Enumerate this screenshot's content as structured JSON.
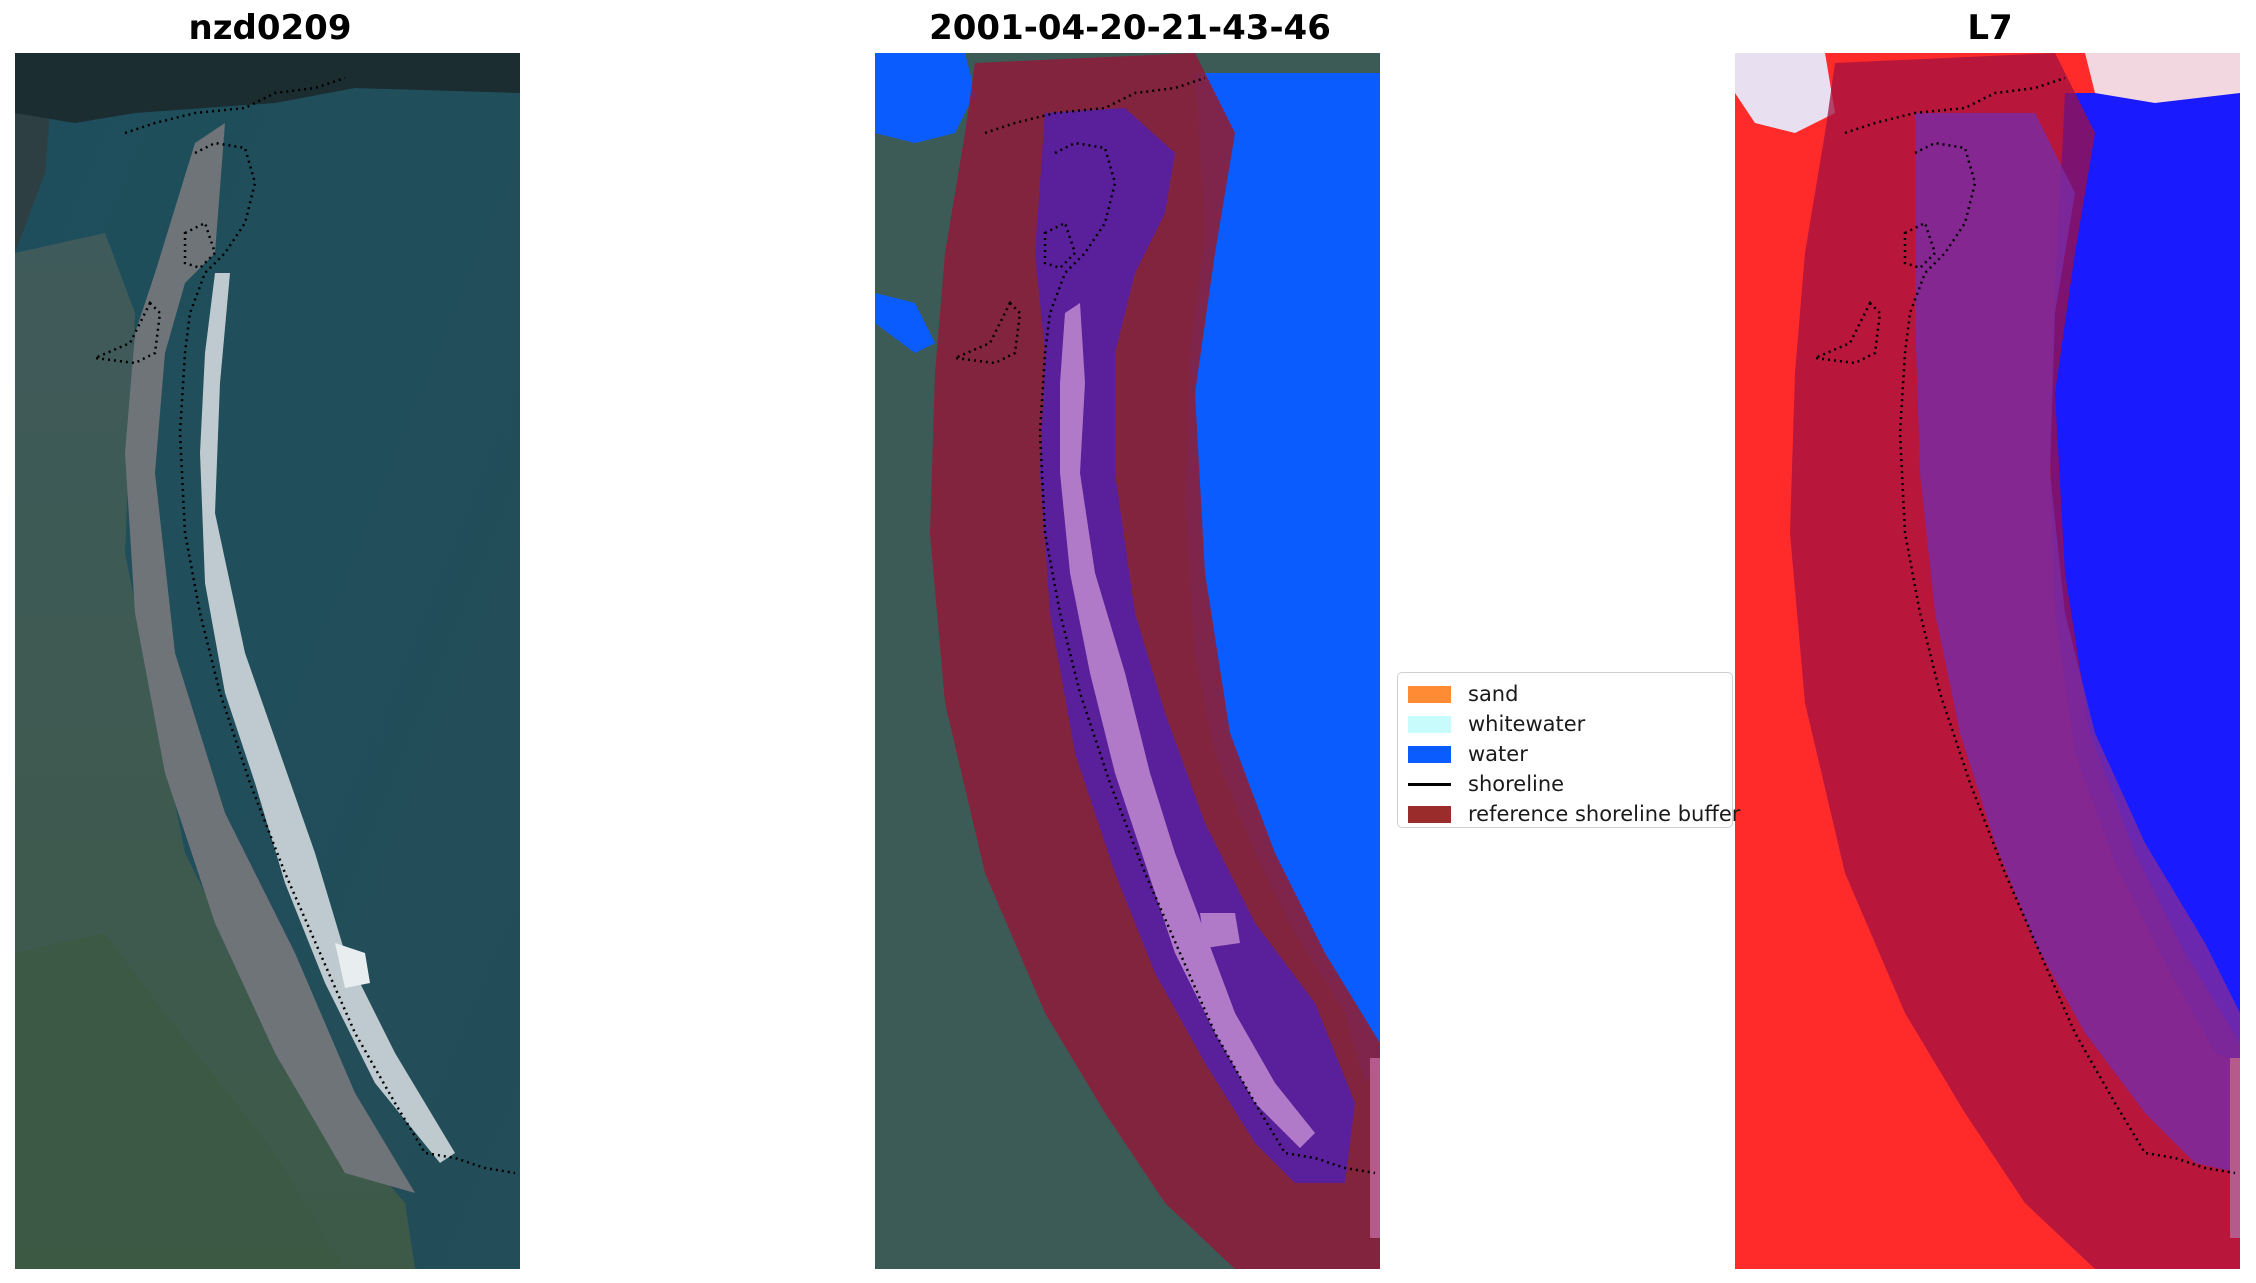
{
  "titles": {
    "left": "nzd0209",
    "middle": "2001-04-20-21-43-46",
    "right": "L7"
  },
  "legend": {
    "items": [
      {
        "label": "sand",
        "color": "#ff8c35",
        "kind": "patch"
      },
      {
        "label": "whitewater",
        "color": "#c8fbfb",
        "kind": "patch"
      },
      {
        "label": "water",
        "color": "#0a5cff",
        "kind": "patch"
      },
      {
        "label": "shoreline",
        "color": "#000000",
        "kind": "line"
      },
      {
        "label": "reference shoreline buffer",
        "color": "#9b2c2c",
        "kind": "patch"
      }
    ]
  },
  "colors": {
    "water_blue": "#0a5cff",
    "buffer": "#8a1f3c",
    "sand_purple": "#5a1f9a",
    "sea_rgb": "#1f5560",
    "land_rgb": "#4a5a55",
    "l7_red": "#ff2a2a",
    "l7_blue": "#1a1aff"
  }
}
